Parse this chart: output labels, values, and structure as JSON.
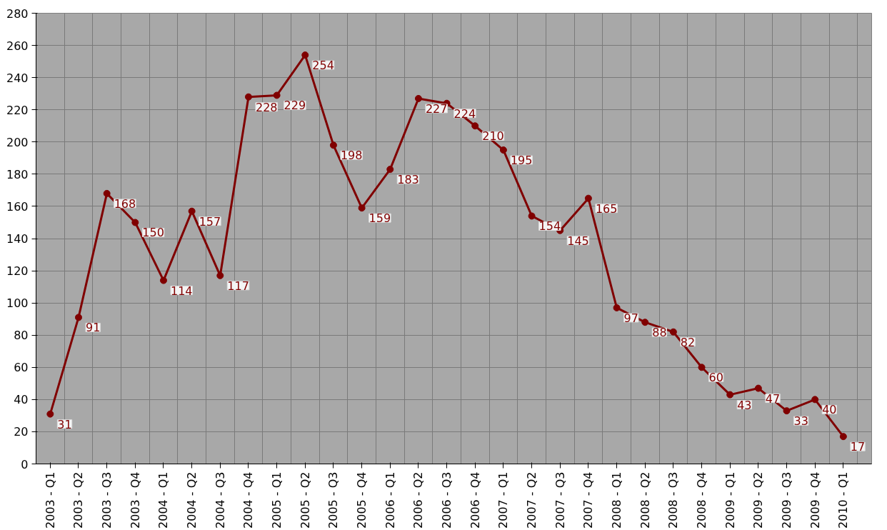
{
  "chart_data": {
    "type": "line",
    "categories": [
      "2003 - Q1",
      "2003 - Q2",
      "2003 - Q3",
      "2003 - Q4",
      "2004 - Q1",
      "2004 - Q2",
      "2004 - Q3",
      "2004 - Q4",
      "2005 - Q1",
      "2005 - Q2",
      "2005 - Q3",
      "2005 - Q4",
      "2006 - Q1",
      "2006 - Q2",
      "2006 - Q3",
      "2006 - Q4",
      "2007 - Q1",
      "2007 - Q2",
      "2007 - Q3",
      "2007 - Q4",
      "2008 - Q1",
      "2008 - Q2",
      "2008 - Q3",
      "2008 - Q4",
      "2009 - Q1",
      "2009 - Q2",
      "2009 - Q3",
      "2009 - Q4",
      "2010 - Q1"
    ],
    "series": [
      {
        "color": "#800000",
        "values": [
          31,
          91,
          168,
          150,
          114,
          157,
          117,
          228,
          229,
          254,
          198,
          159,
          183,
          227,
          224,
          210,
          195,
          154,
          145,
          165,
          97,
          88,
          82,
          60,
          43,
          47,
          33,
          40,
          17
        ]
      }
    ],
    "ylim": [
      0,
      280
    ],
    "yticks": [
      0,
      20,
      40,
      60,
      80,
      100,
      120,
      140,
      160,
      180,
      200,
      220,
      240,
      260,
      280
    ],
    "grid": true,
    "marker": "circle",
    "line_style": "solid",
    "data_labels": true
  }
}
